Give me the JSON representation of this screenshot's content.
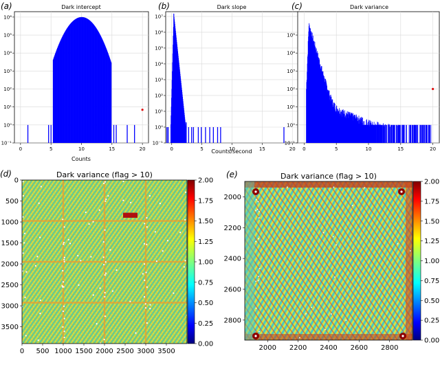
{
  "chart_data": [
    {
      "id": "a",
      "panel_label": "(a)",
      "type": "bar",
      "title": "Dark intercept",
      "xlabel": "Counts",
      "yscale": "log",
      "xlim": [
        -1,
        21
      ],
      "ylim": [
        0.1,
        2000000
      ],
      "xticks": [
        0,
        5,
        10,
        15,
        20
      ],
      "yticks": [
        0.1,
        1,
        10,
        100,
        1000,
        10000,
        100000,
        1000000
      ],
      "ytick_labels": [
        "10⁻¹",
        "10⁰",
        "10¹",
        "10²",
        "10³",
        "10⁴",
        "10⁵",
        "10⁶"
      ],
      "grid": true,
      "color": "#0000ff",
      "distribution": {
        "shape": "gaussian",
        "center": 10,
        "sigma": 1.42,
        "peak": 1000000
      },
      "x": [
        1.2,
        4.6,
        5.0,
        5.4,
        13.8,
        14.6,
        15.3,
        15.7,
        17.5,
        18.7
      ],
      "values": [
        1,
        1,
        1,
        1,
        1,
        1,
        1,
        1,
        1,
        1
      ],
      "outliers": [
        {
          "x": 20.0,
          "y": 7
        }
      ],
      "outlier_color": "#e01010"
    },
    {
      "id": "b",
      "panel_label": "(b)",
      "type": "bar",
      "title": "Dark slope",
      "xlabel": "Counts/second",
      "yscale": "log",
      "xlim": [
        -1,
        21
      ],
      "ylim": [
        0.1,
        20000000
      ],
      "xticks": [
        0,
        5,
        10,
        15,
        20
      ],
      "yticks": [
        0.1,
        1,
        10,
        100,
        1000,
        10000,
        100000,
        1000000,
        10000000
      ],
      "ytick_labels": [
        "10⁻¹",
        "10⁰",
        "10¹",
        "10²",
        "10³",
        "10⁴",
        "10⁵",
        "10⁶",
        "10⁷"
      ],
      "grid": true,
      "color": "#0000ff",
      "distribution": {
        "shape": "sharp-peak",
        "peak_x": 0.3,
        "peak": 15000000
      },
      "x": [
        -0.8,
        -0.6,
        2.4,
        2.8,
        3.3,
        3.6,
        4.4,
        4.9,
        5.6,
        6.3,
        6.9,
        7.6,
        8.1,
        18.6
      ],
      "values": [
        1,
        1,
        2,
        1,
        1,
        1,
        1,
        1,
        1,
        1,
        1,
        1,
        1,
        1
      ],
      "grid_note": ""
    },
    {
      "id": "c",
      "panel_label": "(c)",
      "type": "bar",
      "title": "Dark variance",
      "yscale": "log",
      "xlim": [
        -1,
        21
      ],
      "ylim": [
        0.1,
        2000000
      ],
      "xticks": [
        0,
        5,
        10,
        15,
        20
      ],
      "yticks": [
        0.1,
        1,
        10,
        100,
        1000,
        10000,
        100000
      ],
      "ytick_labels": [
        "10⁻¹",
        "10⁰",
        "10¹",
        "10²",
        "10³",
        "10⁴",
        "10⁵"
      ],
      "grid": true,
      "color": "#0000ff",
      "distribution": {
        "shape": "long-tail",
        "peak_x": 0.7,
        "peak": 400000
      },
      "outliers": [
        {
          "x": 20.0,
          "y": 100
        }
      ],
      "outlier_color": "#e01010"
    },
    {
      "id": "d",
      "panel_label": "(d)",
      "type": "heatmap",
      "title": "Dark variance (flag > 10)",
      "xlim": [
        0,
        4000
      ],
      "ylim": [
        3900,
        0
      ],
      "xticks": [
        0,
        500,
        1000,
        1500,
        2000,
        2500,
        3000,
        3500
      ],
      "yticks": [
        0,
        500,
        1000,
        1500,
        2000,
        2500,
        3000,
        3500
      ],
      "colorbar": {
        "range": [
          0.0,
          2.0
        ],
        "ticks": [
          "0.00",
          "0.25",
          "0.50",
          "0.75",
          "1.00",
          "1.25",
          "1.50",
          "1.75",
          "2.00"
        ],
        "colormap": "jet"
      },
      "detector_grid": {
        "nx": 4,
        "ny": 4
      },
      "hot_region": {
        "x": [
          2450,
          2800
        ],
        "y": [
          780,
          900
        ]
      }
    },
    {
      "id": "e",
      "panel_label": "(e)",
      "type": "heatmap",
      "title": "Dark variance (flag > 10)",
      "xlim": [
        1850,
        2950
      ],
      "ylim": [
        2930,
        1900
      ],
      "xticks": [
        2000,
        2200,
        2400,
        2600,
        2800
      ],
      "yticks": [
        2000,
        2200,
        2400,
        2600,
        2800
      ],
      "colorbar": {
        "range": [
          0.0,
          2.0
        ],
        "ticks": [
          "0.00",
          "0.25",
          "0.50",
          "0.75",
          "1.00",
          "1.25",
          "1.50",
          "1.75",
          "2.00"
        ],
        "colormap": "jet"
      }
    }
  ]
}
